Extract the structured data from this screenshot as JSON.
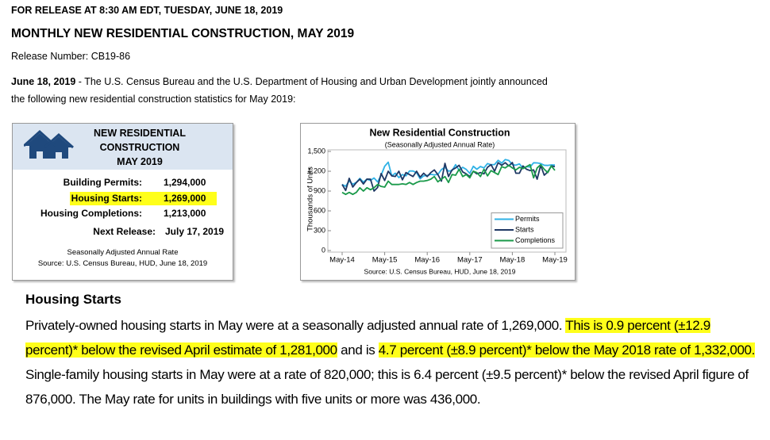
{
  "header": {
    "release": "FOR RELEASE AT 8:30 AM EDT, TUESDAY, JUNE 18, 2019",
    "title": "MONTHLY NEW RESIDENTIAL CONSTRUCTION, MAY 2019",
    "release_number": "Release Number: CB19-86"
  },
  "intro": {
    "date": "June 18, 2019",
    "text": " - The U.S. Census Bureau and the U.S. Department of Housing and Urban Development jointly announced the following new residential construction statistics for May 2019:"
  },
  "summary_box": {
    "title_lines": [
      "NEW RESIDENTIAL",
      "CONSTRUCTION",
      "MAY 2019"
    ],
    "rows": [
      {
        "label": "Building Permits:",
        "value": "1,294,000",
        "highlight": false
      },
      {
        "label": "Housing Starts:",
        "value": "1,269,000",
        "highlight": true
      },
      {
        "label": "Housing Completions:",
        "value": "1,213,000",
        "highlight": false
      }
    ],
    "next_release": {
      "label": "Next Release:",
      "value": "July 17, 2019"
    },
    "note": "Seasonally Adjusted Annual Rate",
    "source": "Source: U.S. Census Bureau, HUD, June 18, 2019"
  },
  "chart_data": {
    "type": "line",
    "title": "New Residential Construction",
    "subtitle": "(Seasonally Adjusted Annual Rate)",
    "y_label": "Thousands of Units",
    "source": "Source: U.S. Census Bureau, HUD, June 18, 2019",
    "x": [
      "2014-05",
      "2014-06",
      "2014-07",
      "2014-08",
      "2014-09",
      "2014-10",
      "2014-11",
      "2014-12",
      "2015-01",
      "2015-02",
      "2015-03",
      "2015-04",
      "2015-05",
      "2015-06",
      "2015-07",
      "2015-08",
      "2015-09",
      "2015-10",
      "2015-11",
      "2015-12",
      "2016-01",
      "2016-02",
      "2016-03",
      "2016-04",
      "2016-05",
      "2016-06",
      "2016-07",
      "2016-08",
      "2016-09",
      "2016-10",
      "2016-11",
      "2016-12",
      "2017-01",
      "2017-02",
      "2017-03",
      "2017-04",
      "2017-05",
      "2017-06",
      "2017-07",
      "2017-08",
      "2017-09",
      "2017-10",
      "2017-11",
      "2017-12",
      "2018-01",
      "2018-02",
      "2018-03",
      "2018-04",
      "2018-05",
      "2018-06",
      "2018-07",
      "2018-08",
      "2018-09",
      "2018-10",
      "2018-11",
      "2018-12",
      "2019-01",
      "2019-02",
      "2019-03",
      "2019-04",
      "2019-05"
    ],
    "xlim": [
      "2014-05",
      "2019-05"
    ],
    "xticks": [
      {
        "value": "2014-05",
        "label": "May-14"
      },
      {
        "value": "2015-05",
        "label": "May-15"
      },
      {
        "value": "2016-05",
        "label": "May-16"
      },
      {
        "value": "2017-05",
        "label": "May-17"
      },
      {
        "value": "2018-05",
        "label": "May-18"
      },
      {
        "value": "2019-05",
        "label": "May-19"
      }
    ],
    "ylim": [
      0,
      1500
    ],
    "yticks": [
      0,
      300,
      600,
      900,
      {
        "value": 1200,
        "label": "1,200"
      },
      {
        "value": 1500,
        "label": "1,500"
      }
    ],
    "legend": "lower right",
    "series": [
      {
        "name": "Permits",
        "color": "#2fb2e6",
        "values": [
          1000,
          973,
          1052,
          1003,
          1031,
          1092,
          1035,
          1080,
          1060,
          1098,
          1038,
          1140,
          1275,
          1337,
          1130,
          1170,
          1103,
          1150,
          1130,
          1204,
          1204,
          1177,
          1086,
          1130,
          1136,
          1153,
          1144,
          1152,
          1225,
          1260,
          1201,
          1210,
          1300,
          1213,
          1260,
          1228,
          1168,
          1275,
          1230,
          1272,
          1250,
          1316,
          1298,
          1302,
          1366,
          1323,
          1377,
          1364,
          1301,
          1292,
          1311,
          1249,
          1270,
          1263,
          1328,
          1326,
          1317,
          1291,
          1288,
          1296,
          1294
        ]
      },
      {
        "name": "Starts",
        "color": "#1f3864",
        "values": [
          1000,
          909,
          1093,
          961,
          1028,
          1080,
          1007,
          1081,
          1080,
          900,
          954,
          1165,
          1060,
          1200,
          1130,
          1120,
          1200,
          1070,
          1180,
          1150,
          1120,
          1200,
          1110,
          1170,
          1120,
          1180,
          1220,
          1150,
          1050,
          1320,
          1120,
          1220,
          1250,
          1290,
          1190,
          1160,
          1120,
          1200,
          1160,
          1180,
          1160,
          1260,
          1300,
          1200,
          1330,
          1290,
          1330,
          1280,
          1332,
          1170,
          1170,
          1280,
          1230,
          1210,
          1220,
          1080,
          1290,
          1140,
          1190,
          1281,
          1269
        ]
      },
      {
        "name": "Completions",
        "color": "#1a9a4a",
        "values": [
          880,
          850,
          880,
          850,
          880,
          950,
          900,
          950,
          920,
          950,
          1000,
          970,
          960,
          1050,
          1000,
          1000,
          1000,
          1010,
          1000,
          1030,
          1000,
          1030,
          1050,
          1050,
          1060,
          1080,
          1120,
          1040,
          1080,
          1120,
          1030,
          1150,
          1140,
          1230,
          1120,
          1150,
          1100,
          1200,
          1180,
          1120,
          1230,
          1130,
          1210,
          1180,
          1150,
          1270,
          1250,
          1290,
          1250,
          1220,
          1260,
          1240,
          1270,
          1300,
          1100,
          1250,
          1300,
          1230,
          1180,
          1280,
          1213
        ]
      }
    ]
  },
  "section": {
    "heading": "Housing Starts",
    "segments": [
      {
        "text": "Privately-owned housing starts in May were at a seasonally adjusted annual rate of 1,269,000.  ",
        "highlight": false
      },
      {
        "text": "This is 0.9 percent (±12.9 percent)* below the revised April estimate of 1,281,000",
        "highlight": true
      },
      {
        "text": " and is ",
        "highlight": false
      },
      {
        "text": "4.7 percent (±8.9 percent)* below the May 2018 rate of 1,332,000.",
        "highlight": true
      },
      {
        "text": "  Single-family housing starts in May were at a rate of 820,000; this is 6.4 percent (±9.5 percent)* below the revised April figure of 876,000. The May rate for units in buildings with five units or more was 436,000.",
        "highlight": false
      }
    ]
  }
}
